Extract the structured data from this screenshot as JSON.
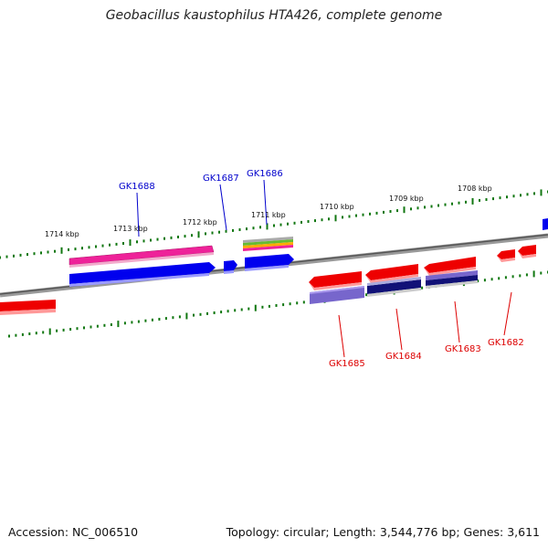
{
  "title": "Geobacillus kaustophilus HTA426, complete genome",
  "accession_text": "Accession: NC_006510",
  "summary_text": "Topology: circular; Length: 3,544,776 bp; Genes: 3,611",
  "colors": {
    "tick": "#117711",
    "backbone": "#777777",
    "forward_gene": "#0000ee",
    "reverse_gene": "#ee0000",
    "pink_gene": "#ee2299",
    "purple_gene": "#7766cc",
    "navy_gene": "#111177",
    "label_forward": "#0000cc",
    "label_reverse": "#dd0000"
  },
  "scale": {
    "unit": "kbp",
    "tick_labels": [
      "1714 kbp",
      "1713 kbp",
      "1712 kbp",
      "1711 kbp",
      "1710 kbp",
      "1709 kbp",
      "1708 kbp"
    ]
  },
  "gene_labels": {
    "forward": [
      "GK1688",
      "GK1687",
      "GK1686"
    ],
    "reverse": [
      "GK1685",
      "GK1684",
      "GK1683",
      "GK1682"
    ]
  }
}
